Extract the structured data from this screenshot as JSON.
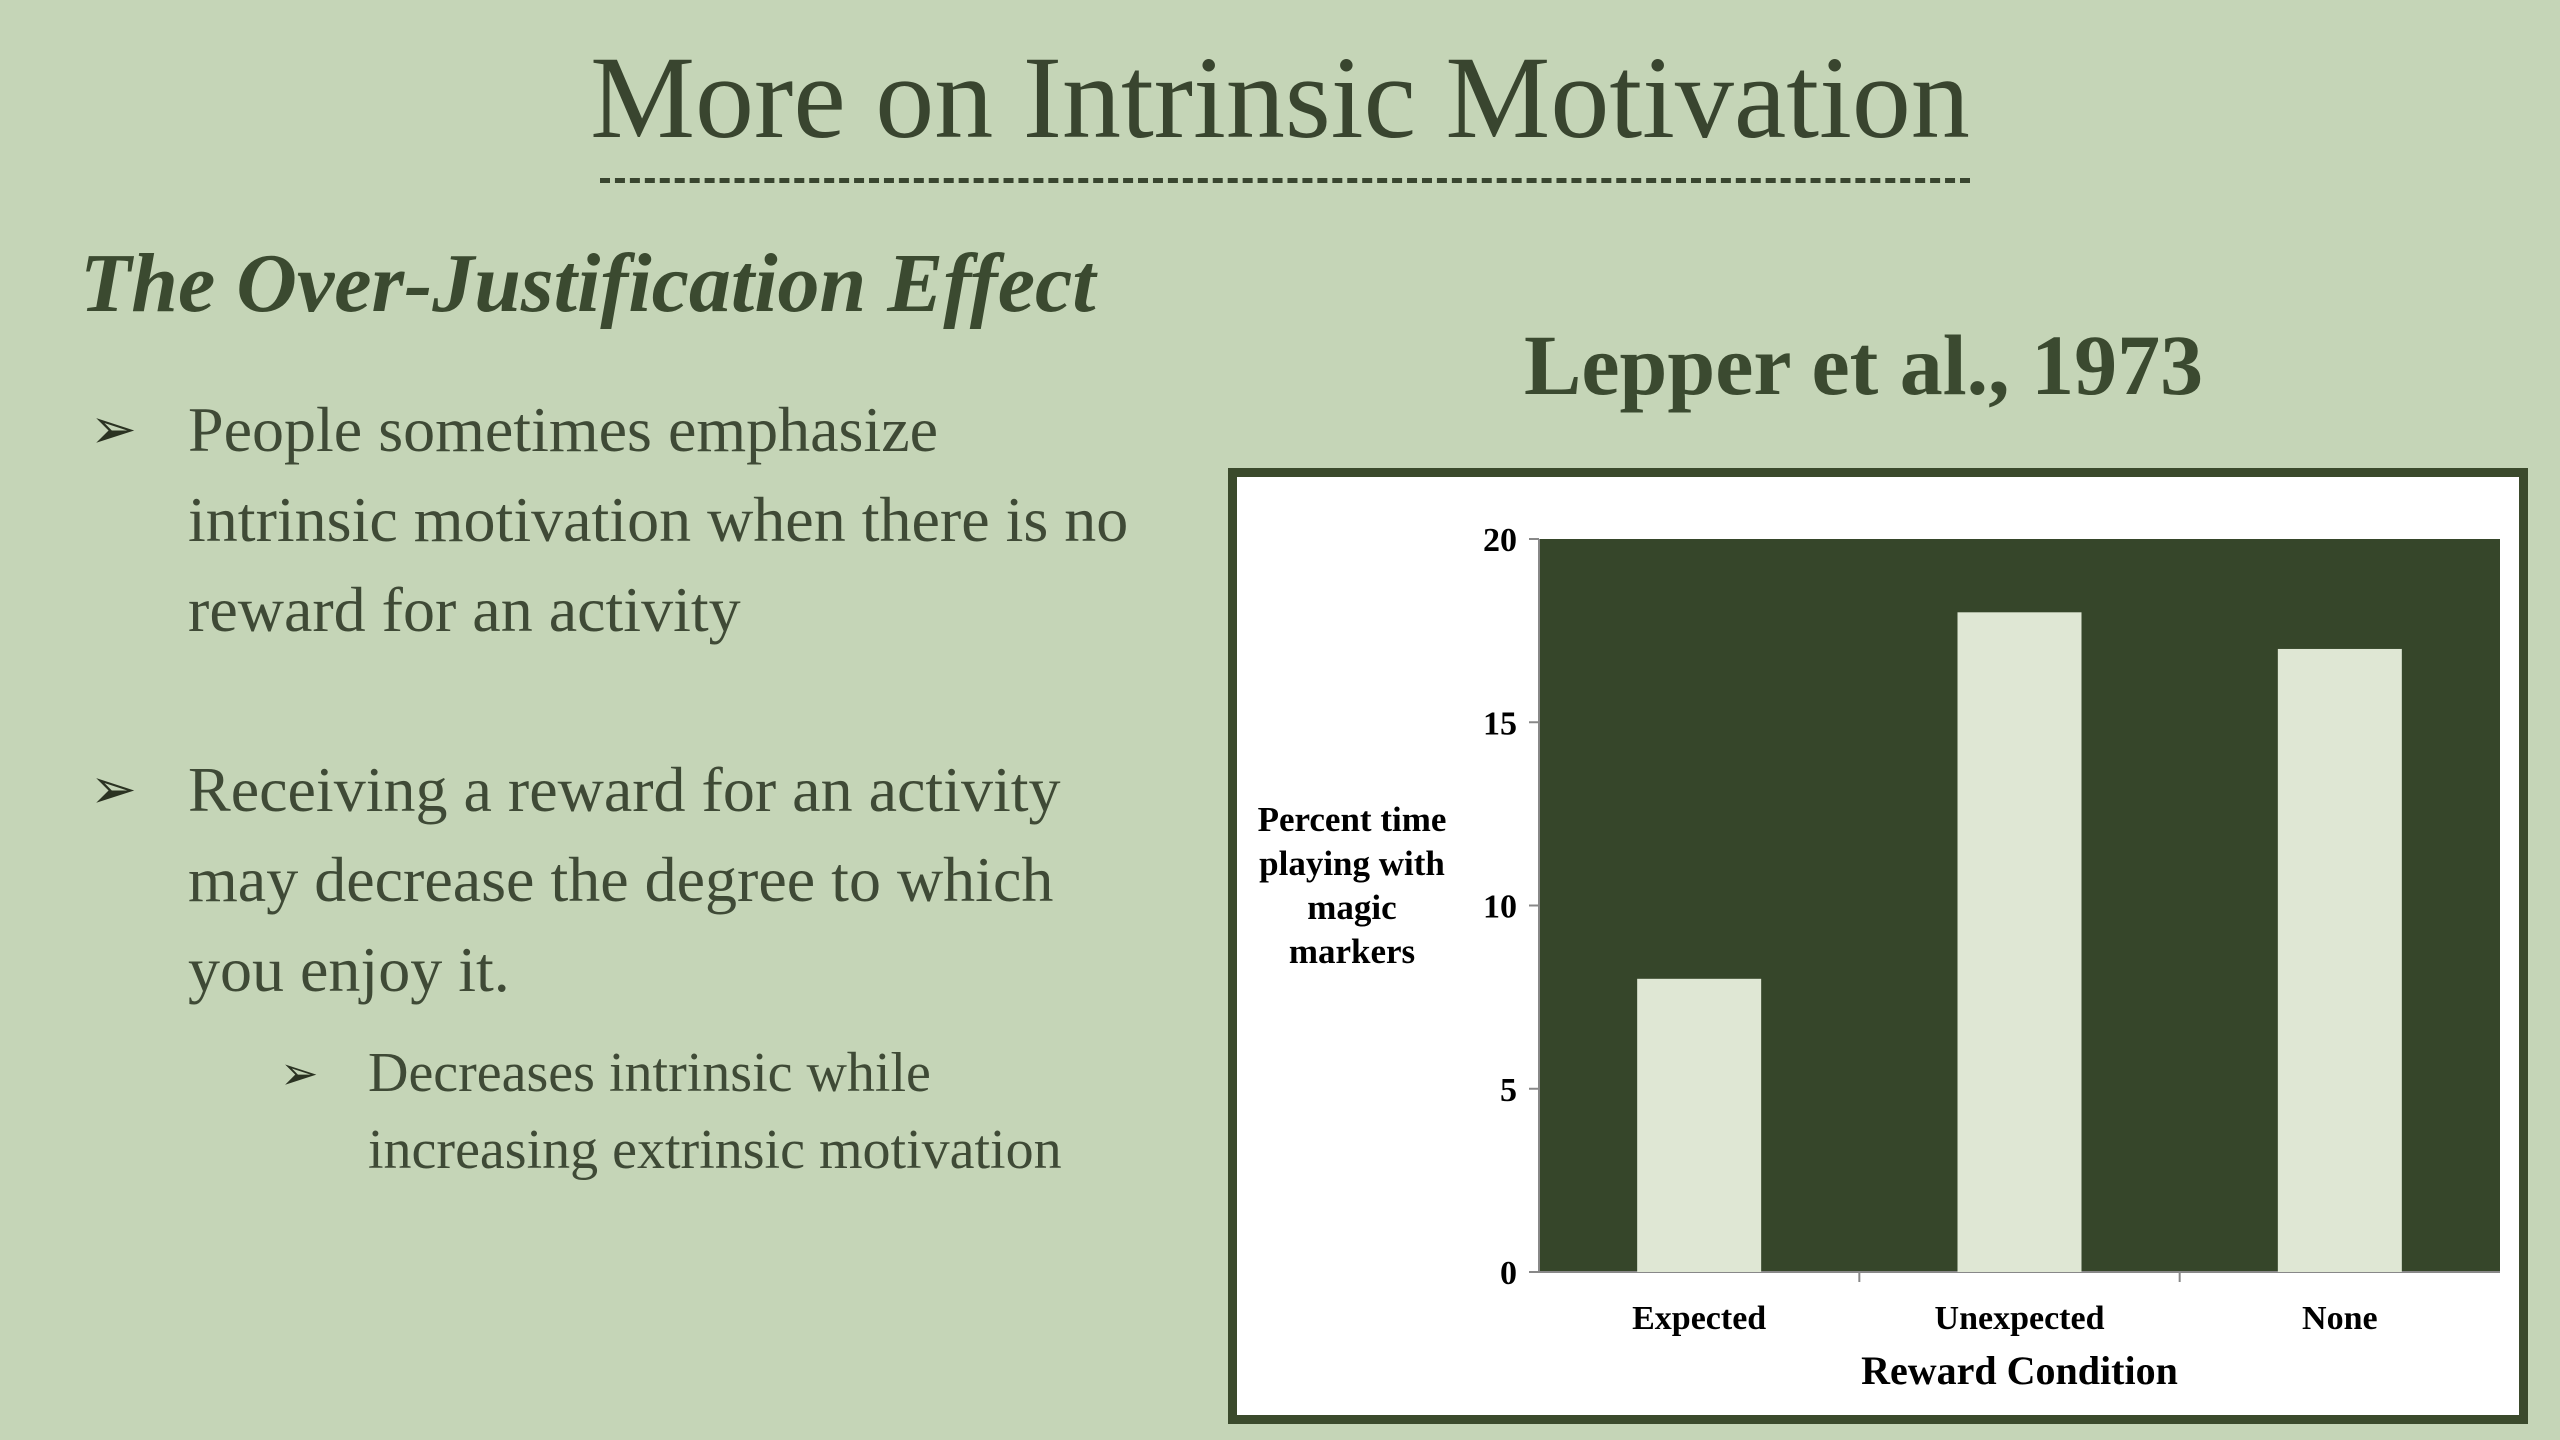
{
  "slide": {
    "title": "More on Intrinsic Motivation",
    "subtitle": "The Over-Justification Effect",
    "reference": "Lepper et al., 1973",
    "bullets": [
      "People sometimes emphasize intrinsic motivation when there is no reward for an activity",
      "Receiving a reward for an activity may decrease the degree to which you enjoy it."
    ],
    "sub_bullets": [
      "Decreases intrinsic while increasing extrinsic motivation"
    ],
    "bullet_icon": "arrowhead-bullet-icon"
  },
  "chart_data": {
    "type": "bar",
    "categories": [
      "Expected",
      "Unexpected",
      "None"
    ],
    "values": [
      8,
      18,
      17
    ],
    "ylabel": "Percent time playing with magic markers",
    "xlabel": "Reward Condition",
    "ylim": [
      0,
      20
    ],
    "yticks": [
      0,
      5,
      10,
      15,
      20
    ],
    "grid": false,
    "colors": {
      "plot_background": "#36462a",
      "bar_fill": "#dfe7d4",
      "frame": "#3b4a2c"
    }
  }
}
